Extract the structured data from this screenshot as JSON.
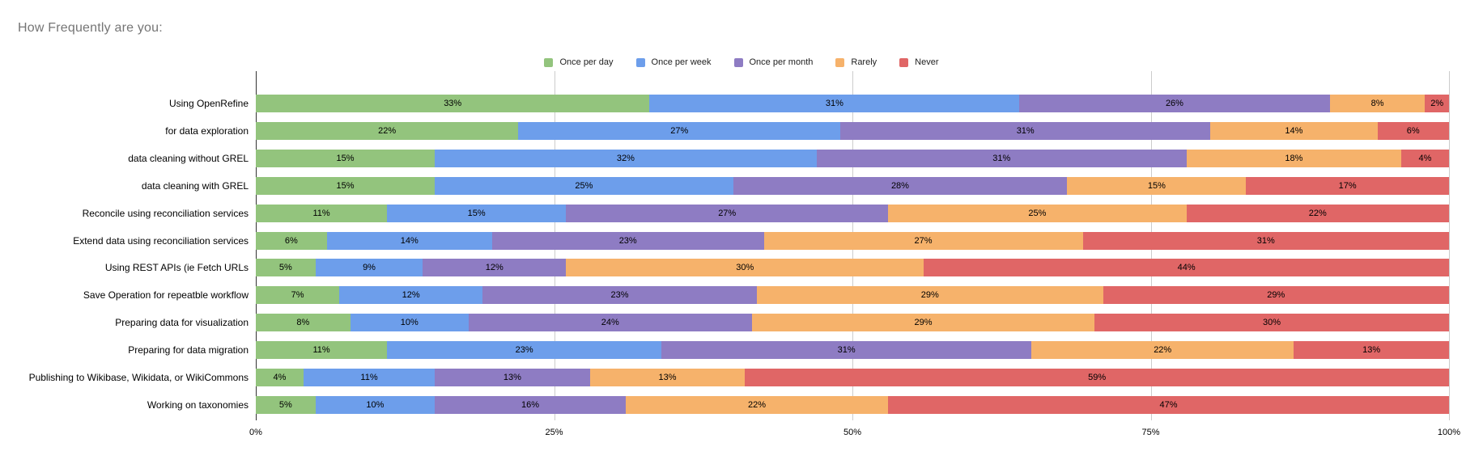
{
  "title": "How Frequently are you:",
  "legend": [
    {
      "label": "Once per day",
      "color": "#93c47d"
    },
    {
      "label": "Once per week",
      "color": "#6d9eeb"
    },
    {
      "label": "Once per month",
      "color": "#8e7cc3"
    },
    {
      "label": "Rarely",
      "color": "#f6b26b"
    },
    {
      "label": "Never",
      "color": "#e06666"
    }
  ],
  "chart_data": {
    "type": "bar",
    "orientation": "horizontal",
    "stacked": true,
    "unit": "%",
    "title": "How Frequently are you:",
    "xlabel": "",
    "ylabel": "",
    "legend_position": "top",
    "grid": true,
    "x_axis": {
      "ticks": [
        "0%",
        "25%",
        "50%",
        "75%",
        "100%"
      ],
      "range": [
        0,
        100
      ]
    },
    "categories": [
      "Using OpenRefine",
      "for data exploration",
      "data cleaning without GREL",
      "data cleaning with GREL",
      "Reconcile using reconciliation services",
      "Extend data using reconciliation services",
      "Using REST APIs (ie Fetch URLs",
      "Save Operation for repeatble workflow",
      "Preparing data for visualization",
      "Preparing for data migration",
      "Publishing to Wikibase, Wikidata, or WikiCommons",
      "Working on taxonomies"
    ],
    "series": [
      {
        "name": "Once per day",
        "color": "#93c47d",
        "values": [
          33,
          22,
          15,
          15,
          11,
          6,
          5,
          7,
          8,
          11,
          4,
          5
        ]
      },
      {
        "name": "Once per week",
        "color": "#6d9eeb",
        "values": [
          31,
          27,
          32,
          25,
          15,
          14,
          9,
          12,
          10,
          23,
          11,
          10
        ]
      },
      {
        "name": "Once per month",
        "color": "#8e7cc3",
        "values": [
          26,
          31,
          31,
          28,
          27,
          23,
          12,
          23,
          24,
          31,
          13,
          16
        ]
      },
      {
        "name": "Rarely",
        "color": "#f6b26b",
        "values": [
          8,
          14,
          18,
          15,
          25,
          27,
          30,
          29,
          29,
          22,
          13,
          22
        ]
      },
      {
        "name": "Never",
        "color": "#e06666",
        "values": [
          2,
          6,
          4,
          17,
          22,
          31,
          44,
          29,
          30,
          13,
          59,
          47
        ]
      }
    ],
    "value_label_format": "{v}%",
    "colors": {
      "gridline": "#cccccc",
      "axis_line": "#333333",
      "title_text": "#757575",
      "label_text": "#000000"
    }
  }
}
